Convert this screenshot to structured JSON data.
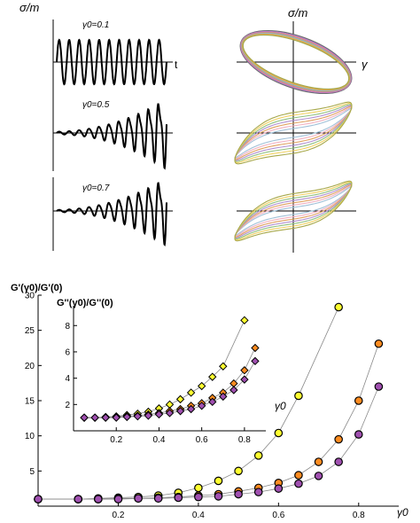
{
  "chart_data": [
    {
      "type": "line",
      "panel": "strain-sweep time series",
      "ylabel": "σ/m",
      "xlabel": "t",
      "traces": [
        {
          "label": "γ0=0.1",
          "gamma0": 0.1
        },
        {
          "label": "γ0=0.5",
          "gamma0": 0.5
        },
        {
          "label": "γ0=0.7",
          "gamma0": 0.7
        }
      ]
    },
    {
      "type": "line",
      "panel": "Lissajous loops",
      "ylabel": "σ/m",
      "xlabel": "γ",
      "colors": [
        "#6d6d6d",
        "#b87ad0",
        "#e08a6f",
        "#7fb6c9",
        "#e9a94c",
        "#a7a84a"
      ]
    },
    {
      "type": "scatter",
      "panel": "main",
      "ylabel": "G'(γ0)/G'(0)",
      "xlabel": "γ0",
      "xlim": [
        0,
        0.9
      ],
      "ylim": [
        0,
        30
      ],
      "xticks": [
        0.2,
        0.4,
        0.6,
        0.8
      ],
      "yticks": [
        5,
        10,
        15,
        20,
        25,
        30
      ],
      "series": [
        {
          "color": "#ffff30",
          "x": [
            0.0,
            0.1,
            0.15,
            0.2,
            0.25,
            0.3,
            0.35,
            0.4,
            0.45,
            0.5,
            0.55,
            0.6,
            0.65,
            0.75
          ],
          "y": [
            1.0,
            1.0,
            1.1,
            1.2,
            1.3,
            1.5,
            1.9,
            2.6,
            3.6,
            5.0,
            7.2,
            10.4,
            15.7,
            28.3
          ]
        },
        {
          "color": "#ff8c20",
          "x": [
            0.0,
            0.1,
            0.15,
            0.2,
            0.25,
            0.3,
            0.35,
            0.4,
            0.45,
            0.5,
            0.55,
            0.6,
            0.65,
            0.7,
            0.75,
            0.8,
            0.85
          ],
          "y": [
            1.0,
            1.0,
            1.0,
            1.1,
            1.1,
            1.2,
            1.3,
            1.5,
            1.7,
            2.1,
            2.6,
            3.3,
            4.4,
            6.3,
            9.5,
            15.0,
            23.1
          ]
        },
        {
          "color": "#a050b0",
          "x": [
            0.0,
            0.1,
            0.15,
            0.2,
            0.25,
            0.3,
            0.35,
            0.4,
            0.45,
            0.5,
            0.55,
            0.6,
            0.65,
            0.7,
            0.75,
            0.8,
            0.85
          ],
          "y": [
            1.0,
            1.0,
            1.0,
            1.0,
            1.1,
            1.1,
            1.2,
            1.3,
            1.4,
            1.7,
            2.0,
            2.5,
            3.2,
            4.3,
            6.3,
            10.2,
            17.0
          ]
        }
      ]
    },
    {
      "type": "scatter",
      "panel": "inset",
      "ylabel": "G''(γ0)/G''(0)",
      "xlabel": "γ0",
      "xlim": [
        0,
        0.9
      ],
      "ylim": [
        0,
        9.5
      ],
      "xticks": [
        0.2,
        0.4,
        0.6,
        0.8
      ],
      "yticks": [
        2,
        4,
        6,
        8
      ],
      "series": [
        {
          "color": "#ffff30",
          "x": [
            0.05,
            0.1,
            0.15,
            0.2,
            0.25,
            0.3,
            0.35,
            0.4,
            0.45,
            0.5,
            0.55,
            0.6,
            0.65,
            0.7,
            0.8
          ],
          "y": [
            1.0,
            1.0,
            1.05,
            1.1,
            1.2,
            1.3,
            1.45,
            1.7,
            2.0,
            2.4,
            2.9,
            3.4,
            4.1,
            4.9,
            8.4
          ]
        },
        {
          "color": "#ff8c20",
          "x": [
            0.05,
            0.1,
            0.15,
            0.2,
            0.25,
            0.3,
            0.35,
            0.4,
            0.45,
            0.5,
            0.55,
            0.6,
            0.65,
            0.7,
            0.75,
            0.8,
            0.85
          ],
          "y": [
            1.0,
            1.0,
            1.0,
            1.05,
            1.1,
            1.15,
            1.25,
            1.35,
            1.5,
            1.65,
            1.9,
            2.1,
            2.5,
            2.9,
            3.6,
            4.6,
            6.3
          ]
        },
        {
          "color": "#a050b0",
          "x": [
            0.05,
            0.1,
            0.15,
            0.2,
            0.25,
            0.3,
            0.35,
            0.4,
            0.45,
            0.5,
            0.55,
            0.6,
            0.65,
            0.7,
            0.75,
            0.8,
            0.85
          ],
          "y": [
            1.0,
            1.0,
            1.0,
            1.0,
            1.05,
            1.1,
            1.15,
            1.25,
            1.35,
            1.5,
            1.65,
            1.9,
            2.2,
            2.6,
            3.1,
            3.9,
            5.3
          ]
        }
      ]
    }
  ]
}
